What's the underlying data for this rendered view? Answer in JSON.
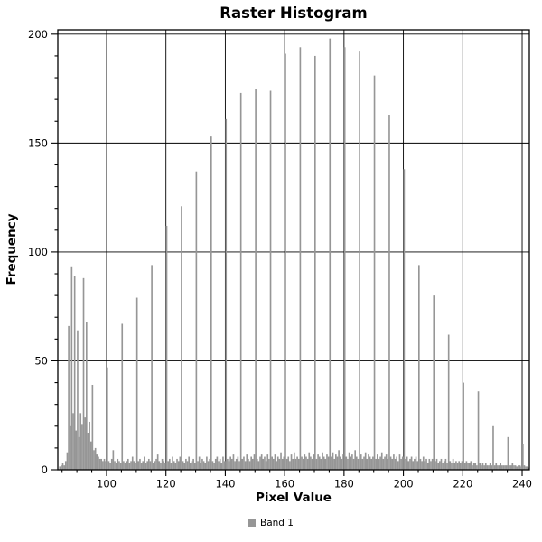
{
  "window": {
    "description": "raster histogram chart panel"
  },
  "colors": {
    "background": "#ffffff",
    "bar": "#969696",
    "grid": "#000000",
    "frame": "#000000",
    "text": "#000000"
  },
  "legend": {
    "items": [
      {
        "label": "Band 1",
        "color": "#969696"
      }
    ],
    "position": "bottom-center"
  },
  "chart_data": {
    "type": "bar",
    "title": "Raster Histogram",
    "xlabel": "Pixel Value",
    "ylabel": "Frequency",
    "grid": true,
    "xlim": [
      83.57,
      242.43
    ],
    "ylim": [
      0,
      202
    ],
    "xticks_major": [
      100,
      120,
      140,
      160,
      180,
      200,
      220,
      240
    ],
    "xtick_minor_step": 5,
    "yticks_major": [
      0,
      50,
      100,
      150,
      200
    ],
    "ytick_minor_step": 10,
    "bar_color": "#969696",
    "bin_width": 0.5,
    "series_name": "Band 1",
    "bins": [
      [
        84,
        1.5
      ],
      [
        84.5,
        2
      ],
      [
        85,
        3
      ],
      [
        85.5,
        2
      ],
      [
        86,
        4
      ],
      [
        86.5,
        8
      ],
      [
        87,
        66
      ],
      [
        87.5,
        20
      ],
      [
        88,
        93
      ],
      [
        88.5,
        26
      ],
      [
        89,
        89
      ],
      [
        89.5,
        18
      ],
      [
        90,
        64
      ],
      [
        90.5,
        15
      ],
      [
        91,
        26
      ],
      [
        91.5,
        21
      ],
      [
        92,
        88
      ],
      [
        92.5,
        24
      ],
      [
        93,
        68
      ],
      [
        93.5,
        17
      ],
      [
        94,
        22
      ],
      [
        94.5,
        13
      ],
      [
        95,
        39
      ],
      [
        95.5,
        9
      ],
      [
        96,
        10
      ],
      [
        96.5,
        7
      ],
      [
        97,
        6
      ],
      [
        97.5,
        5
      ],
      [
        98,
        5
      ],
      [
        98.5,
        4
      ],
      [
        99,
        5
      ],
      [
        99.5,
        4
      ],
      [
        100,
        47
      ],
      [
        100.5,
        4
      ],
      [
        101,
        3
      ],
      [
        101.5,
        5
      ],
      [
        102,
        9
      ],
      [
        102.5,
        4
      ],
      [
        103,
        3
      ],
      [
        103.5,
        5
      ],
      [
        104,
        4
      ],
      [
        104.5,
        3
      ],
      [
        105,
        67
      ],
      [
        105.5,
        4
      ],
      [
        106,
        3
      ],
      [
        106.5,
        4
      ],
      [
        107,
        5
      ],
      [
        107.5,
        3
      ],
      [
        108,
        4
      ],
      [
        108.5,
        6
      ],
      [
        109,
        4
      ],
      [
        109.5,
        3
      ],
      [
        110,
        79
      ],
      [
        110.5,
        4
      ],
      [
        111,
        5
      ],
      [
        111.5,
        3
      ],
      [
        112,
        4
      ],
      [
        112.5,
        6
      ],
      [
        113,
        3
      ],
      [
        113.5,
        4
      ],
      [
        114,
        5
      ],
      [
        114.5,
        4
      ],
      [
        115,
        94
      ],
      [
        115.5,
        3
      ],
      [
        116,
        4
      ],
      [
        116.5,
        5
      ],
      [
        117,
        7
      ],
      [
        117.5,
        4
      ],
      [
        118,
        3
      ],
      [
        118.5,
        5
      ],
      [
        119,
        4
      ],
      [
        119.5,
        3
      ],
      [
        120,
        112
      ],
      [
        120.5,
        4
      ],
      [
        121,
        5
      ],
      [
        121.5,
        3
      ],
      [
        122,
        6
      ],
      [
        122.5,
        4
      ],
      [
        123,
        3
      ],
      [
        123.5,
        5
      ],
      [
        124,
        4
      ],
      [
        124.5,
        6
      ],
      [
        125,
        121
      ],
      [
        125.5,
        4
      ],
      [
        126,
        3
      ],
      [
        126.5,
        5
      ],
      [
        127,
        4
      ],
      [
        127.5,
        6
      ],
      [
        128,
        3
      ],
      [
        128.5,
        4
      ],
      [
        129,
        5
      ],
      [
        129.5,
        3
      ],
      [
        130,
        137
      ],
      [
        130.5,
        4
      ],
      [
        131,
        6
      ],
      [
        131.5,
        3
      ],
      [
        132,
        5
      ],
      [
        132.5,
        4
      ],
      [
        133,
        3
      ],
      [
        133.5,
        6
      ],
      [
        134,
        4
      ],
      [
        134.5,
        5
      ],
      [
        135,
        153
      ],
      [
        135.5,
        4
      ],
      [
        136,
        3
      ],
      [
        136.5,
        5
      ],
      [
        137,
        6
      ],
      [
        137.5,
        4
      ],
      [
        138,
        5
      ],
      [
        138.5,
        3
      ],
      [
        139,
        6
      ],
      [
        139.5,
        4
      ],
      [
        140,
        161
      ],
      [
        140.5,
        5
      ],
      [
        141,
        4
      ],
      [
        141.5,
        6
      ],
      [
        142,
        5
      ],
      [
        142.5,
        7
      ],
      [
        143,
        4
      ],
      [
        143.5,
        5
      ],
      [
        144,
        6
      ],
      [
        144.5,
        4
      ],
      [
        145,
        173
      ],
      [
        145.5,
        5
      ],
      [
        146,
        6
      ],
      [
        146.5,
        4
      ],
      [
        147,
        7
      ],
      [
        147.5,
        5
      ],
      [
        148,
        4
      ],
      [
        148.5,
        6
      ],
      [
        149,
        5
      ],
      [
        149.5,
        7
      ],
      [
        150,
        175
      ],
      [
        150.5,
        5
      ],
      [
        151,
        4
      ],
      [
        151.5,
        6
      ],
      [
        152,
        7
      ],
      [
        152.5,
        5
      ],
      [
        153,
        6
      ],
      [
        153.5,
        4
      ],
      [
        154,
        7
      ],
      [
        154.5,
        5
      ],
      [
        155,
        174
      ],
      [
        155.5,
        6
      ],
      [
        156,
        5
      ],
      [
        156.5,
        7
      ],
      [
        157,
        4
      ],
      [
        157.5,
        6
      ],
      [
        158,
        5
      ],
      [
        158.5,
        8
      ],
      [
        159,
        5
      ],
      [
        159.5,
        6
      ],
      [
        160,
        191
      ],
      [
        160.5,
        5
      ],
      [
        161,
        6
      ],
      [
        161.5,
        4
      ],
      [
        162,
        7
      ],
      [
        162.5,
        5
      ],
      [
        163,
        8
      ],
      [
        163.5,
        5
      ],
      [
        164,
        6
      ],
      [
        164.5,
        5
      ],
      [
        165,
        194
      ],
      [
        165.5,
        6
      ],
      [
        166,
        5
      ],
      [
        166.5,
        7
      ],
      [
        167,
        6
      ],
      [
        167.5,
        5
      ],
      [
        168,
        8
      ],
      [
        168.5,
        6
      ],
      [
        169,
        5
      ],
      [
        169.5,
        7
      ],
      [
        170,
        190
      ],
      [
        170.5,
        5
      ],
      [
        171,
        7
      ],
      [
        171.5,
        6
      ],
      [
        172,
        5
      ],
      [
        172.5,
        8
      ],
      [
        173,
        6
      ],
      [
        173.5,
        5
      ],
      [
        174,
        7
      ],
      [
        174.5,
        6
      ],
      [
        175,
        198
      ],
      [
        175.5,
        6
      ],
      [
        176,
        8
      ],
      [
        176.5,
        5
      ],
      [
        177,
        7
      ],
      [
        177.5,
        6
      ],
      [
        178,
        9
      ],
      [
        178.5,
        6
      ],
      [
        179,
        5
      ],
      [
        179.5,
        7
      ],
      [
        180,
        194
      ],
      [
        180.5,
        6
      ],
      [
        181,
        5
      ],
      [
        181.5,
        8
      ],
      [
        182,
        6
      ],
      [
        182.5,
        7
      ],
      [
        183,
        5
      ],
      [
        183.5,
        9
      ],
      [
        184,
        6
      ],
      [
        184.5,
        5
      ],
      [
        185,
        192
      ],
      [
        185.5,
        7
      ],
      [
        186,
        5
      ],
      [
        186.5,
        6
      ],
      [
        187,
        8
      ],
      [
        187.5,
        5
      ],
      [
        188,
        7
      ],
      [
        188.5,
        6
      ],
      [
        189,
        5
      ],
      [
        189.5,
        6
      ],
      [
        190,
        181
      ],
      [
        190.5,
        5
      ],
      [
        191,
        7
      ],
      [
        191.5,
        5
      ],
      [
        192,
        6
      ],
      [
        192.5,
        8
      ],
      [
        193,
        5
      ],
      [
        193.5,
        6
      ],
      [
        194,
        7
      ],
      [
        194.5,
        5
      ],
      [
        195,
        163
      ],
      [
        195.5,
        6
      ],
      [
        196,
        5
      ],
      [
        196.5,
        7
      ],
      [
        197,
        5
      ],
      [
        197.5,
        6
      ],
      [
        198,
        4
      ],
      [
        198.5,
        7
      ],
      [
        199,
        5
      ],
      [
        199.5,
        6
      ],
      [
        200,
        138
      ],
      [
        200.5,
        5
      ],
      [
        201,
        6
      ],
      [
        201.5,
        4
      ],
      [
        202,
        5
      ],
      [
        202.5,
        6
      ],
      [
        203,
        4
      ],
      [
        203.5,
        5
      ],
      [
        204,
        6
      ],
      [
        204.5,
        4
      ],
      [
        205,
        94
      ],
      [
        205.5,
        5
      ],
      [
        206,
        4
      ],
      [
        206.5,
        6
      ],
      [
        207,
        4
      ],
      [
        207.5,
        5
      ],
      [
        208,
        3
      ],
      [
        208.5,
        5
      ],
      [
        209,
        4
      ],
      [
        209.5,
        5
      ],
      [
        210,
        80
      ],
      [
        210.5,
        4
      ],
      [
        211,
        5
      ],
      [
        211.5,
        3
      ],
      [
        212,
        4
      ],
      [
        212.5,
        5
      ],
      [
        213,
        3
      ],
      [
        213.5,
        4
      ],
      [
        214,
        5
      ],
      [
        214.5,
        3
      ],
      [
        215,
        62
      ],
      [
        215.5,
        4
      ],
      [
        216,
        3
      ],
      [
        216.5,
        5
      ],
      [
        217,
        3
      ],
      [
        217.5,
        4
      ],
      [
        218,
        3
      ],
      [
        218.5,
        4
      ],
      [
        219,
        3
      ],
      [
        219.5,
        4
      ],
      [
        220,
        40
      ],
      [
        220.5,
        3
      ],
      [
        221,
        4
      ],
      [
        221.5,
        3
      ],
      [
        222,
        3
      ],
      [
        222.5,
        4
      ],
      [
        223,
        2
      ],
      [
        223.5,
        3
      ],
      [
        224,
        3
      ],
      [
        224.5,
        2
      ],
      [
        225,
        36
      ],
      [
        225.5,
        3
      ],
      [
        226,
        2
      ],
      [
        226.5,
        3
      ],
      [
        227,
        2
      ],
      [
        227.5,
        3
      ],
      [
        228,
        2
      ],
      [
        228.5,
        2
      ],
      [
        229,
        3
      ],
      [
        229.5,
        2
      ],
      [
        230,
        20
      ],
      [
        230.5,
        2
      ],
      [
        231,
        3
      ],
      [
        231.5,
        2
      ],
      [
        232,
        2
      ],
      [
        232.5,
        3
      ],
      [
        233,
        2
      ],
      [
        233.5,
        2
      ],
      [
        234,
        2
      ],
      [
        234.5,
        2
      ],
      [
        235,
        15
      ],
      [
        235.5,
        2
      ],
      [
        236,
        2
      ],
      [
        236.5,
        3
      ],
      [
        237,
        2
      ],
      [
        237.5,
        2
      ],
      [
        238,
        1.5
      ],
      [
        238.5,
        2
      ],
      [
        239,
        2
      ],
      [
        239.5,
        1.5
      ],
      [
        240,
        12
      ],
      [
        240.5,
        2
      ],
      [
        241,
        1.5
      ],
      [
        241.5,
        1.5
      ],
      [
        242,
        1
      ]
    ]
  }
}
